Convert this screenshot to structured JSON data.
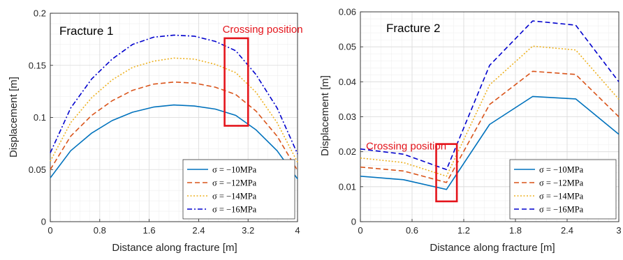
{
  "chart_data": [
    {
      "type": "line",
      "title": "Fracture 1",
      "xlabel": "Distance along fracture [m]",
      "ylabel": "Displacement  [m]",
      "xlim": [
        0,
        4
      ],
      "ylim": [
        0,
        0.2
      ],
      "xticks": [
        0,
        0.8,
        1.6,
        2.4,
        3.2,
        4
      ],
      "xtick_labels": [
        "0",
        "0.8",
        "1.6",
        "2.4",
        "3.2",
        "4"
      ],
      "yticks": [
        0,
        0.05,
        0.1,
        0.15,
        0.2
      ],
      "ytick_labels": [
        "0",
        "0.05",
        "0.1",
        "0.15",
        "0.2"
      ],
      "grid": true,
      "legend_position": "bottom-right",
      "annotation": {
        "text": "Crossing position",
        "rect_x": [
          2.82,
          3.2
        ],
        "rect_y": [
          0.092,
          0.176
        ]
      },
      "x": [
        0,
        0.33,
        0.67,
        1.0,
        1.33,
        1.67,
        2.0,
        2.33,
        2.67,
        3.0,
        3.33,
        3.67,
        4.0
      ],
      "series": [
        {
          "name": "σ = −10MPa",
          "color": "#0072bd",
          "dash": "solid",
          "values": [
            0.042,
            0.068,
            0.085,
            0.097,
            0.105,
            0.11,
            0.112,
            0.111,
            0.108,
            0.102,
            0.088,
            0.068,
            0.041
          ]
        },
        {
          "name": "σ = −12MPa",
          "color": "#d95319",
          "dash": "dashed",
          "values": [
            0.05,
            0.082,
            0.102,
            0.116,
            0.126,
            0.132,
            0.134,
            0.133,
            0.129,
            0.122,
            0.106,
            0.082,
            0.049
          ]
        },
        {
          "name": "σ = −14MPa",
          "color": "#edb120",
          "dash": "dotted",
          "values": [
            0.058,
            0.095,
            0.119,
            0.136,
            0.148,
            0.154,
            0.157,
            0.156,
            0.151,
            0.143,
            0.124,
            0.095,
            0.057
          ]
        },
        {
          "name": "σ = −16MPa",
          "color": "#0000cd",
          "dash": "dashdot",
          "values": [
            0.066,
            0.109,
            0.137,
            0.156,
            0.17,
            0.177,
            0.179,
            0.178,
            0.173,
            0.164,
            0.141,
            0.109,
            0.065
          ]
        }
      ]
    },
    {
      "type": "line",
      "title": "Fracture 2",
      "xlabel": "Distance along fracture  [m]",
      "ylabel": "Displacement  [m]",
      "xlim": [
        0,
        3
      ],
      "ylim": [
        0,
        0.06
      ],
      "xticks": [
        0,
        0.6,
        1.2,
        1.8,
        2.4,
        3
      ],
      "xtick_labels": [
        "0",
        "0.6",
        "1.2",
        "1.8",
        "2.4",
        "3"
      ],
      "yticks": [
        0,
        0.01,
        0.02,
        0.03,
        0.04,
        0.05,
        0.06
      ],
      "ytick_labels": [
        "0",
        "0.01",
        "0.02",
        "0.03",
        "0.04",
        "0.05",
        "0.06"
      ],
      "grid": true,
      "legend_position": "bottom-right",
      "annotation": {
        "text": "Crossing position",
        "rect_x": [
          0.88,
          1.12
        ],
        "rect_y": [
          0.0058,
          0.0222
        ]
      },
      "x": [
        0,
        0.5,
        1.0,
        1.5,
        2.0,
        2.5,
        3.0
      ],
      "series": [
        {
          "name": "σ = −10MPa",
          "color": "#0072bd",
          "dash": "solid",
          "values": [
            0.013,
            0.012,
            0.0092,
            0.0278,
            0.0358,
            0.0351,
            0.025
          ]
        },
        {
          "name": "σ = −12MPa",
          "color": "#d95319",
          "dash": "dashed",
          "values": [
            0.0156,
            0.0145,
            0.0112,
            0.0335,
            0.043,
            0.0421,
            0.03
          ]
        },
        {
          "name": "σ = −14MPa",
          "color": "#edb120",
          "dash": "dotted",
          "values": [
            0.0182,
            0.0169,
            0.013,
            0.0391,
            0.0502,
            0.0491,
            0.035
          ]
        },
        {
          "name": "σ = −16MPa",
          "color": "#0000cd",
          "dash": "dashed",
          "values": [
            0.0208,
            0.0193,
            0.0149,
            0.0447,
            0.0574,
            0.0562,
            0.04
          ]
        }
      ]
    }
  ]
}
